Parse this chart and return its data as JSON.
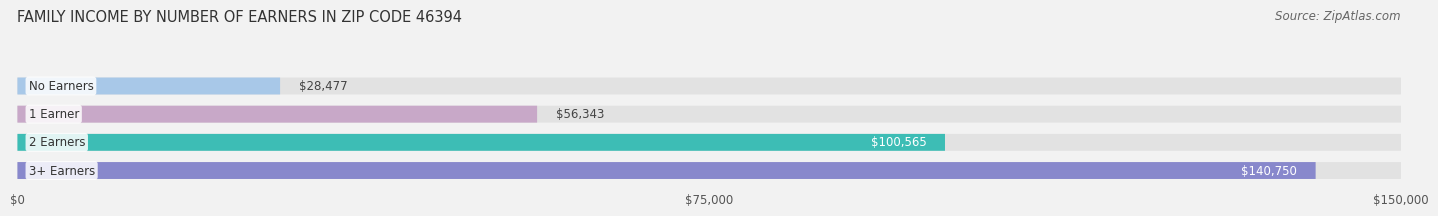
{
  "title": "FAMILY INCOME BY NUMBER OF EARNERS IN ZIP CODE 46394",
  "source": "Source: ZipAtlas.com",
  "categories": [
    "No Earners",
    "1 Earner",
    "2 Earners",
    "3+ Earners"
  ],
  "values": [
    28477,
    56343,
    100565,
    140750
  ],
  "bar_colors": [
    "#a8c8e8",
    "#c8a8c8",
    "#3dbdb5",
    "#8888cc"
  ],
  "label_colors": [
    "#444444",
    "#444444",
    "#ffffff",
    "#ffffff"
  ],
  "value_labels": [
    "$28,477",
    "$56,343",
    "$100,565",
    "$140,750"
  ],
  "xlim": [
    0,
    150000
  ],
  "xticks": [
    0,
    75000,
    150000
  ],
  "xtick_labels": [
    "$0",
    "$75,000",
    "$150,000"
  ],
  "background_color": "#f2f2f2",
  "bar_background_color": "#e2e2e2",
  "title_fontsize": 10.5,
  "source_fontsize": 8.5,
  "label_fontsize": 8.5,
  "value_fontsize": 8.5,
  "bar_height": 0.6,
  "inside_label_threshold": 60000
}
